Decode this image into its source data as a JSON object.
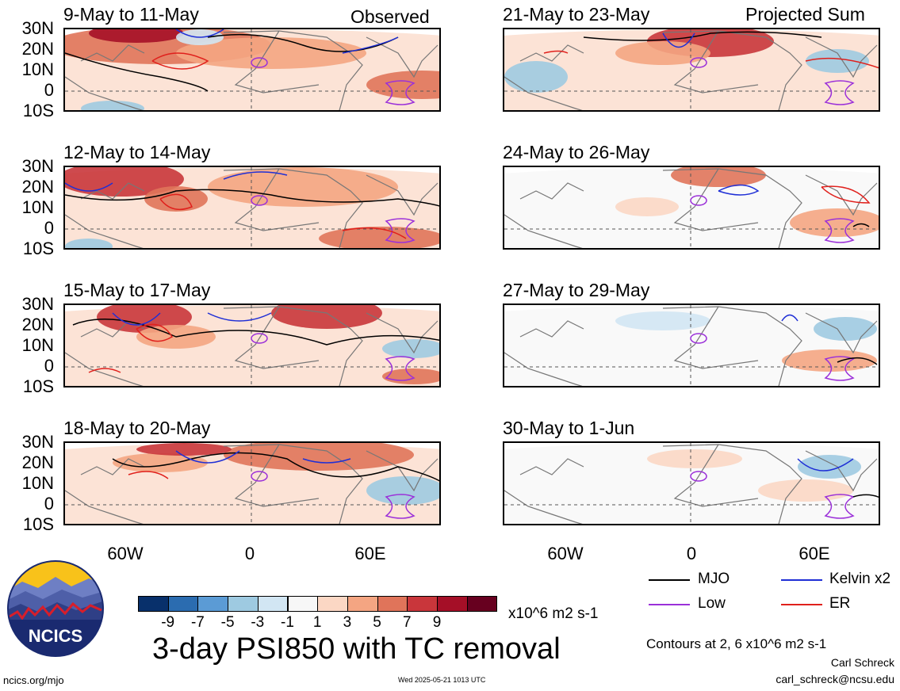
{
  "panels": [
    {
      "title": "9-May to 11-May",
      "tag": "Observed"
    },
    {
      "title": "12-May to 14-May",
      "tag": ""
    },
    {
      "title": "15-May to 17-May",
      "tag": ""
    },
    {
      "title": "18-May to 20-May",
      "tag": ""
    },
    {
      "title": "21-May to 23-May",
      "tag": "Projected Sum"
    },
    {
      "title": "24-May to 26-May",
      "tag": ""
    },
    {
      "title": "27-May to 29-May",
      "tag": ""
    },
    {
      "title": "30-May to 1-Jun",
      "tag": ""
    }
  ],
  "lat_labels": [
    "30N",
    "20N",
    "10N",
    "0",
    "10S"
  ],
  "lon_labels": [
    "60W",
    "0",
    "60E"
  ],
  "colorbar": {
    "colors": [
      "#08306b",
      "#2b6cb0",
      "#5b9bd5",
      "#9ecae1",
      "#d2e6f3",
      "#f7f7f7",
      "#fbd7c4",
      "#f4a582",
      "#e0745a",
      "#c9363b",
      "#a50f27",
      "#67001f"
    ],
    "labels": [
      "-9",
      "-7",
      "-5",
      "-3",
      "-1",
      "1",
      "3",
      "5",
      "7",
      "9"
    ],
    "units": "x10^6 m2 s-1"
  },
  "legend": [
    {
      "label": "MJO",
      "color": "#000000"
    },
    {
      "label": "Kelvin x2",
      "color": "#1f2fd6"
    },
    {
      "label": "Low",
      "color": "#9b30d9"
    },
    {
      "label": "ER",
      "color": "#e0201c"
    }
  ],
  "main_title": "3-day PSI850 with TC removal",
  "contours_note": "Contours at 2, 6 x10^6 m2 s-1",
  "author": "Carl Schreck",
  "email": "carl_schreck@ncsu.edu",
  "url": "ncics.org/mjo",
  "timestamp": "Wed 2025-05-21 1013 UTC",
  "logo_text": "NCICS"
}
